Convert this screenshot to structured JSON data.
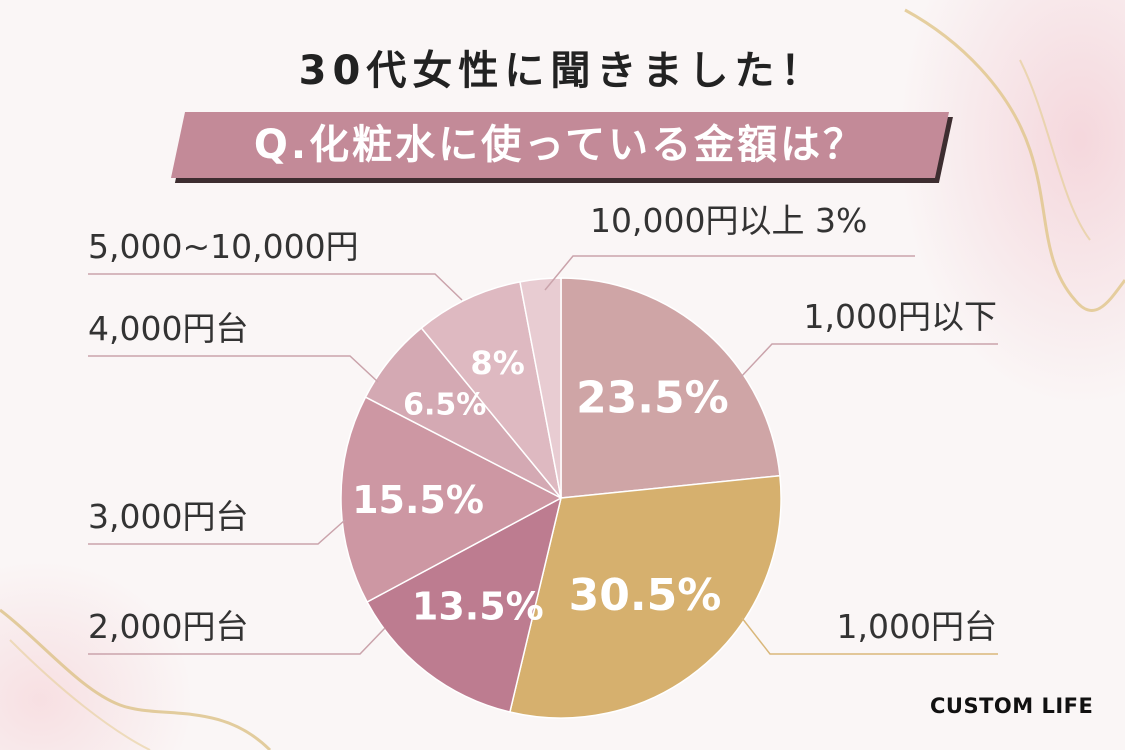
{
  "header": {
    "heading": "30代女性に聞きました！",
    "question": "Q.化粧水に使っている金額は？"
  },
  "chart_data": {
    "type": "pie",
    "categories": [
      "1,000円以下",
      "1,000円台",
      "2,000円台",
      "3,000円台",
      "4,000円台",
      "5,000~10,000円",
      "10,000円以上"
    ],
    "values": [
      23.5,
      30.5,
      13.5,
      15.5,
      6.5,
      8,
      3
    ],
    "value_labels": [
      "23.5%",
      "30.5%",
      "13.5%",
      "15.5%",
      "6.5%",
      "8%",
      "3%"
    ],
    "colors": [
      "#cfa5a6",
      "#d6b06e",
      "#bd7c90",
      "#cd97a3",
      "#d4a9b3",
      "#deb9c1",
      "#e8ccd2"
    ],
    "unit": "%"
  },
  "brand": {
    "logo": "CUSTOM LIFE"
  }
}
